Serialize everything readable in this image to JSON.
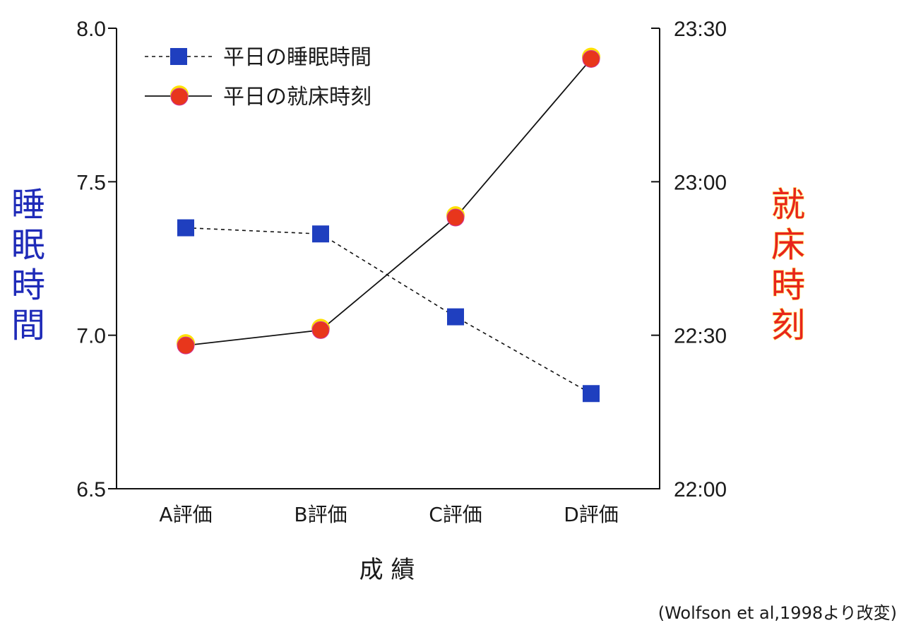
{
  "chart_data": {
    "type": "line",
    "categories": [
      "A評価",
      "B評価",
      "C評価",
      "D評価"
    ],
    "xlabel": "成 績",
    "y_left": {
      "label": "睡眠時間",
      "ylim": [
        6.5,
        8.0
      ],
      "ticks": [
        "8.0",
        "7.5",
        "7.0",
        "6.5"
      ],
      "tick_values": [
        8.0,
        7.5,
        7.0,
        6.5
      ]
    },
    "y_right": {
      "label": "就床時刻",
      "ylim": [
        "22:00",
        "23:30"
      ],
      "ticks": [
        "23:30",
        "23:00",
        "22:30",
        "22:00"
      ],
      "tick_values": [
        "23:30",
        "23:00",
        "22:30",
        "22:00"
      ]
    },
    "series": [
      {
        "name": "平日の睡眠時間",
        "axis": "left",
        "values": [
          7.35,
          7.33,
          7.06,
          6.81
        ],
        "line_style": "dashed",
        "marker": "square",
        "color": "#1f3fbf"
      },
      {
        "name": "平日の就床時刻",
        "axis": "right",
        "values": [
          "22:28",
          "22:31",
          "22:53",
          "23:24"
        ],
        "line_style": "solid",
        "marker": "circle",
        "color": "#e8361c"
      }
    ],
    "legend_position": "top-left",
    "grid": false,
    "source": "(Wolfson et al,1998より改変)"
  }
}
